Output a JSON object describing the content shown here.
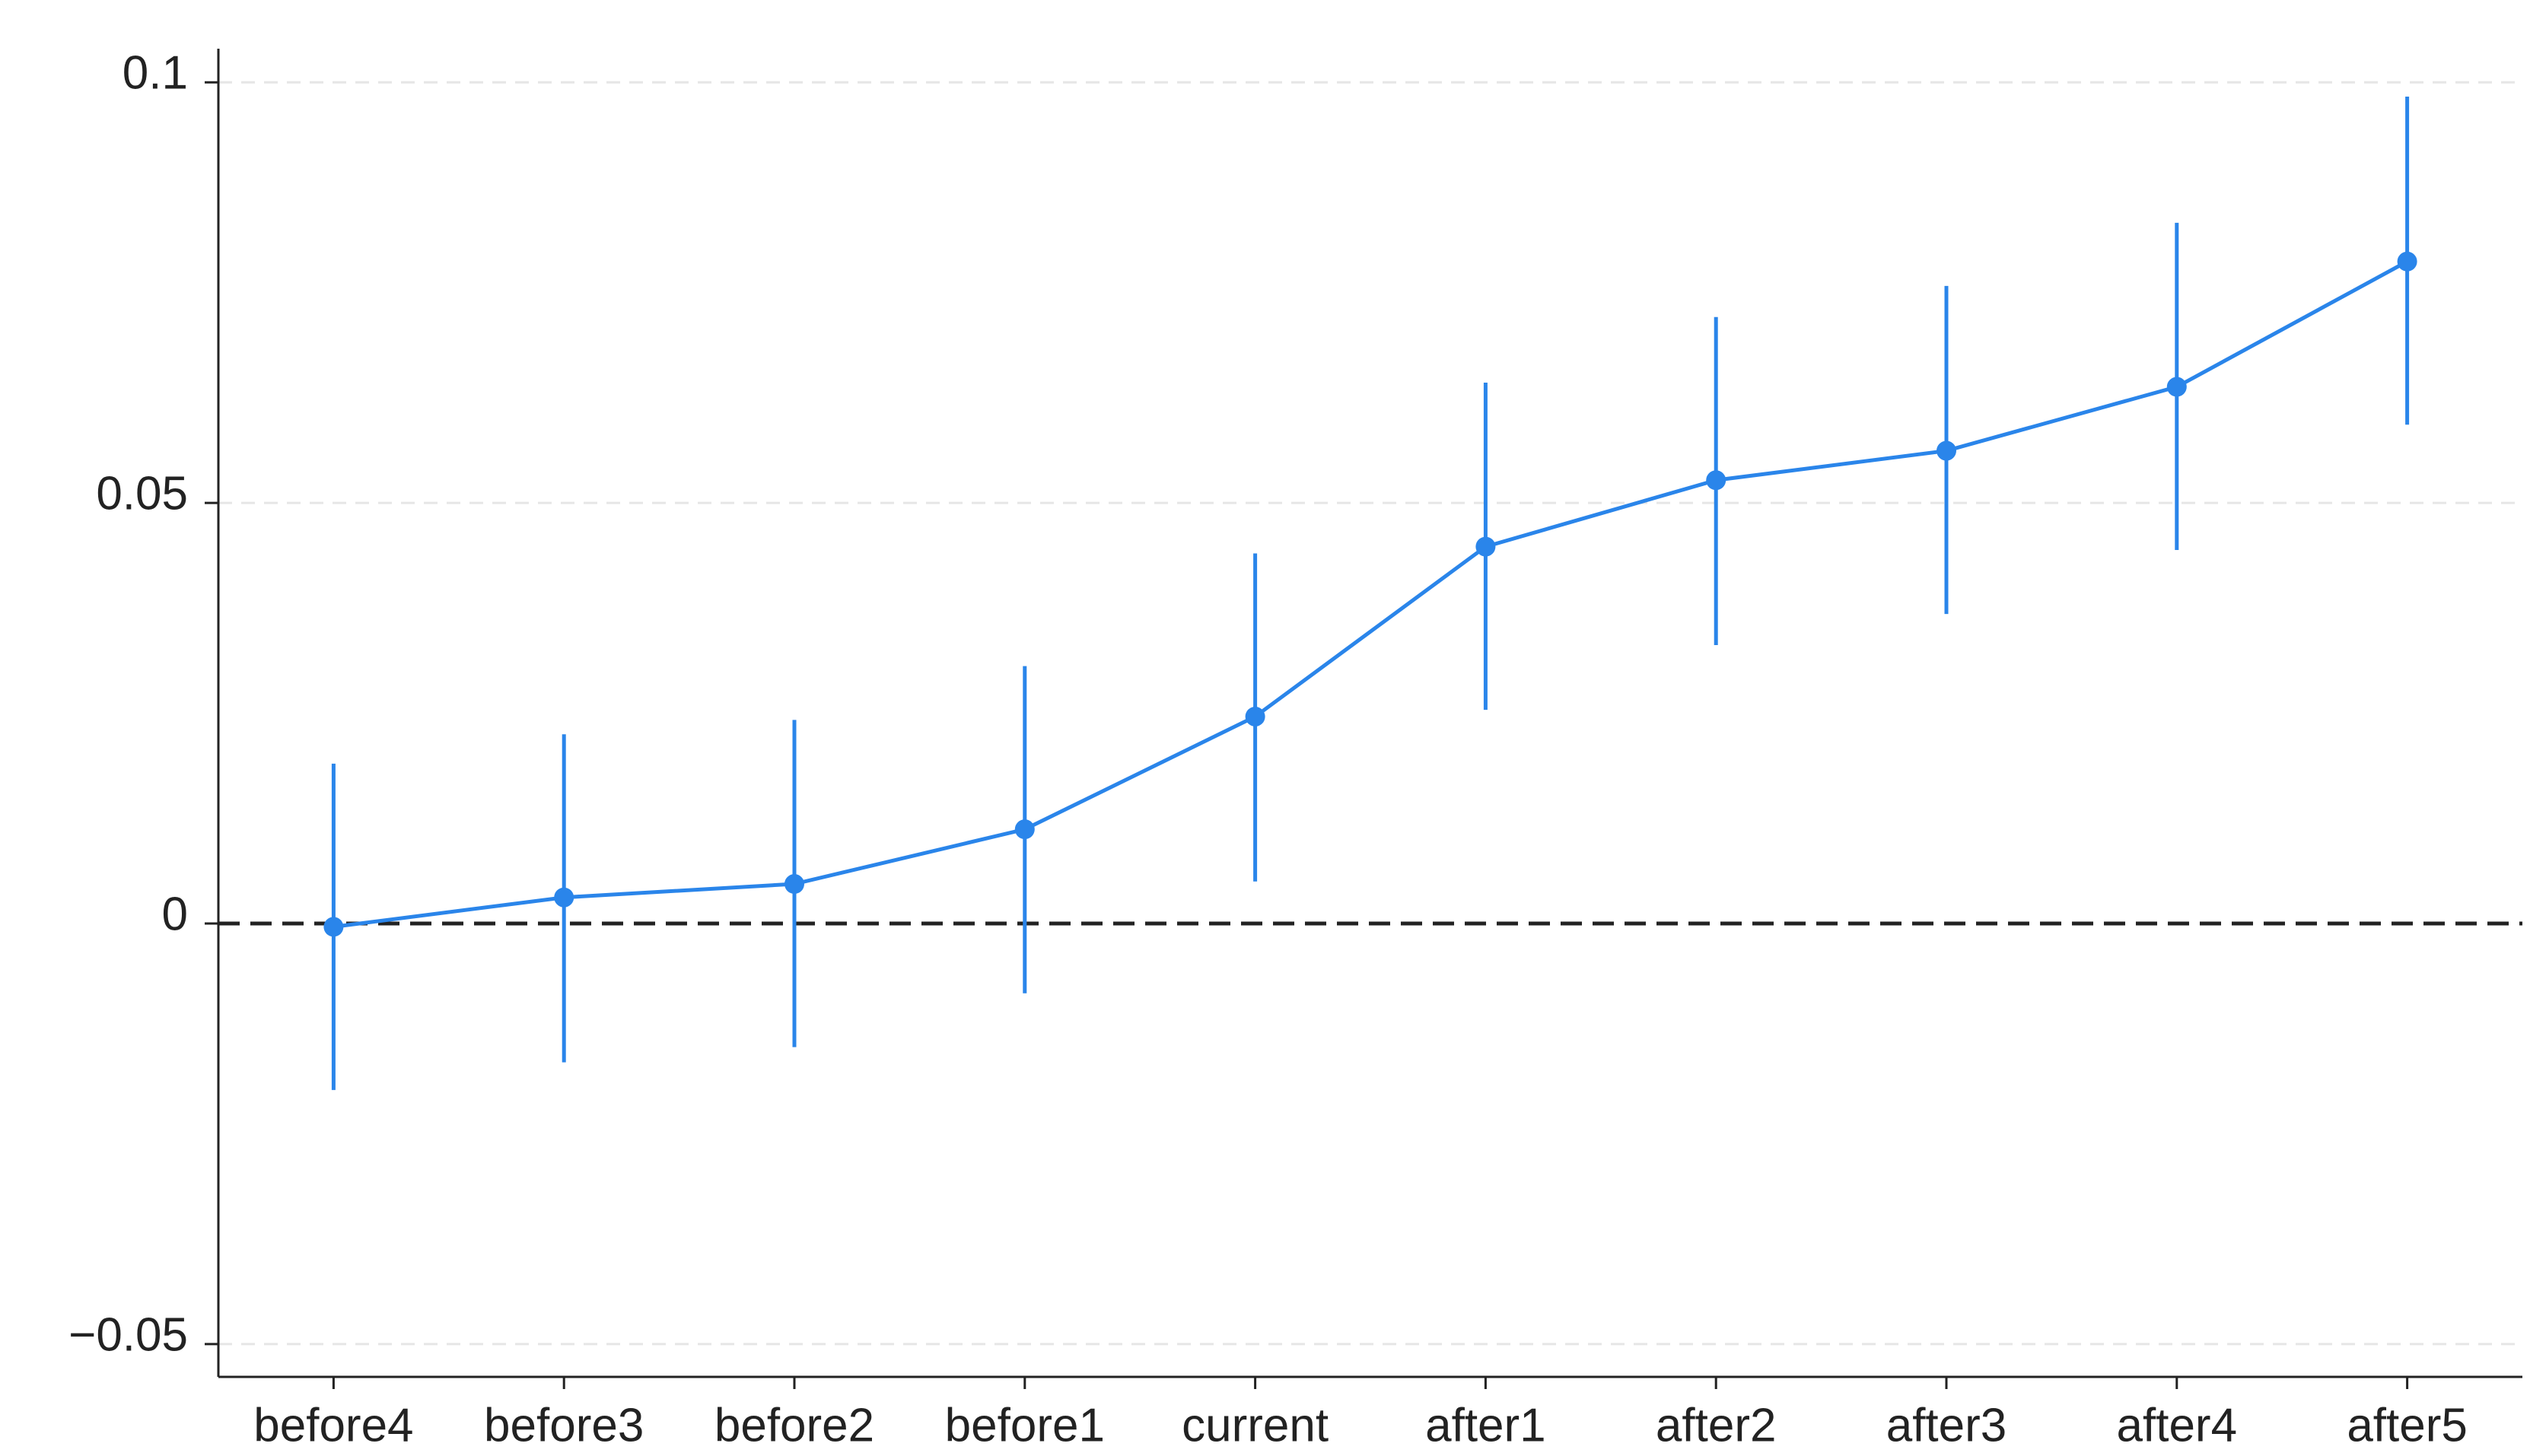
{
  "chart_data": {
    "type": "errorline",
    "categories": [
      "before4",
      "before3",
      "before2",
      "before1",
      "current",
      "after1",
      "after2",
      "after3",
      "after4",
      "after5"
    ],
    "values": [
      -0.0004,
      0.0031,
      0.0047,
      0.0112,
      0.0246,
      0.0448,
      0.0527,
      0.0562,
      0.0638,
      0.0787
    ],
    "ci_lower": [
      -0.0198,
      -0.0165,
      -0.0147,
      -0.0083,
      0.005,
      0.0254,
      0.0331,
      0.0368,
      0.0444,
      0.0593
    ],
    "ci_upper": [
      0.019,
      0.0225,
      0.0242,
      0.0306,
      0.044,
      0.0643,
      0.0721,
      0.0758,
      0.0833,
      0.0983
    ],
    "color": "#2a85ea",
    "ylim": [
      -0.0539,
      0.104
    ],
    "yticks": [
      {
        "value": -0.05,
        "label": "−0.05"
      },
      0,
      0.05,
      0.1
    ],
    "grid": true,
    "reference_line": 0
  }
}
